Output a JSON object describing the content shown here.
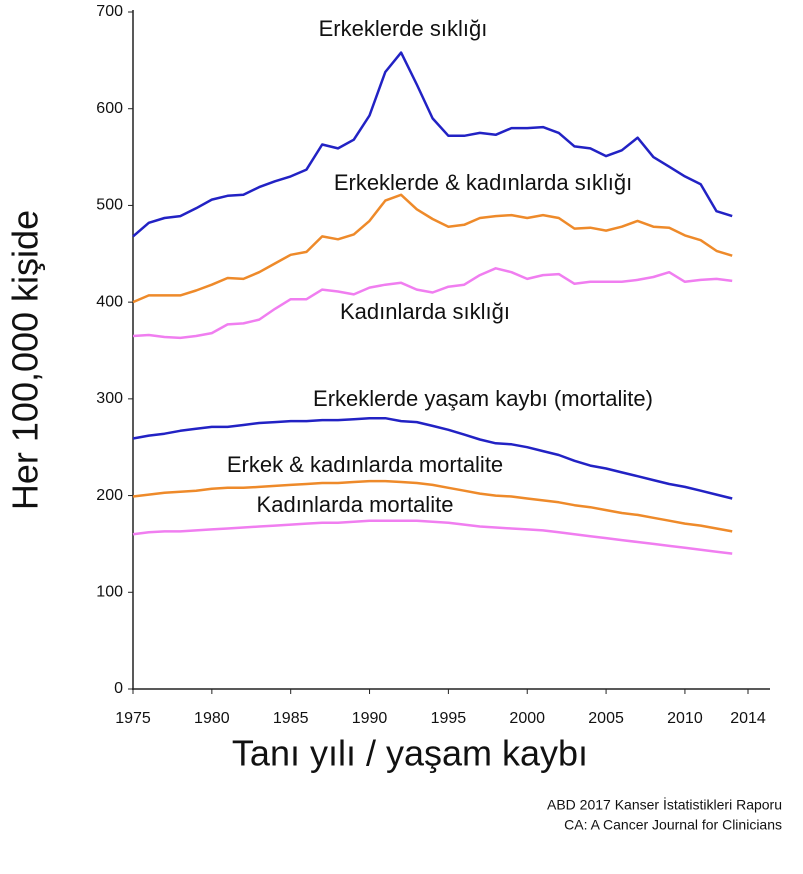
{
  "chart_data": {
    "type": "line",
    "ylabel": "Her 100,000 kişide",
    "xlabel": "Tanı yılı / yaşam kaybı",
    "source": [
      "ABD 2017 Kanser İstatistikleri Raporu",
      "CA: A Cancer Journal for Clinicians"
    ],
    "x": [
      1975,
      1976,
      1977,
      1978,
      1979,
      1980,
      1981,
      1982,
      1983,
      1984,
      1985,
      1986,
      1987,
      1988,
      1989,
      1990,
      1991,
      1992,
      1993,
      1994,
      1995,
      1996,
      1997,
      1998,
      1999,
      2000,
      2001,
      2002,
      2003,
      2004,
      2005,
      2006,
      2007,
      2008,
      2009,
      2010,
      2011,
      2012,
      2013
    ],
    "xlim": [
      1975,
      2014
    ],
    "xticks": [
      1975,
      1980,
      1985,
      1990,
      1995,
      2000,
      2005,
      2010,
      2014
    ],
    "ylim": [
      0,
      700
    ],
    "yticks": [
      0,
      100,
      200,
      300,
      400,
      500,
      600,
      700
    ],
    "series": [
      {
        "name": "Erkeklerde sıklığı",
        "color": "#2222c4",
        "values": [
          468,
          482,
          487,
          489,
          497,
          506,
          510,
          511,
          519,
          525,
          530,
          537,
          563,
          559,
          568,
          593,
          638,
          658,
          625,
          590,
          572,
          572,
          575,
          573,
          580,
          580,
          581,
          575,
          561,
          559,
          551,
          557,
          570,
          550,
          540,
          530,
          522,
          494,
          489
        ]
      },
      {
        "name": "Erkeklerde & kadınlarda sıklığı",
        "color": "#ee8a2a",
        "values": [
          400,
          407,
          407,
          407,
          412,
          418,
          425,
          424,
          431,
          440,
          449,
          452,
          468,
          465,
          470,
          484,
          505,
          511,
          496,
          486,
          478,
          480,
          487,
          489,
          490,
          487,
          490,
          487,
          476,
          477,
          474,
          478,
          484,
          478,
          477,
          469,
          464,
          453,
          448
        ]
      },
      {
        "name": "Kadınlarda sıklığı",
        "color": "#f07ef0",
        "values": [
          365,
          366,
          364,
          363,
          365,
          368,
          377,
          378,
          382,
          393,
          403,
          403,
          413,
          411,
          408,
          415,
          418,
          420,
          413,
          410,
          416,
          418,
          428,
          435,
          431,
          424,
          428,
          429,
          419,
          421,
          421,
          421,
          423,
          426,
          431,
          421,
          423,
          424,
          422
        ]
      },
      {
        "name": "Erkeklerde yaşam kaybı (mortalite)",
        "color": "#2222c4",
        "values": [
          259,
          262,
          264,
          267,
          269,
          271,
          271,
          273,
          275,
          276,
          277,
          277,
          278,
          278,
          279,
          280,
          280,
          277,
          276,
          272,
          268,
          263,
          258,
          254,
          253,
          250,
          246,
          242,
          236,
          231,
          228,
          224,
          220,
          216,
          212,
          209,
          205,
          201,
          197
        ]
      },
      {
        "name": "Erkek & kadınlarda mortalite",
        "color": "#ee8a2a",
        "values": [
          199,
          201,
          203,
          204,
          205,
          207,
          208,
          208,
          209,
          210,
          211,
          212,
          213,
          213,
          214,
          215,
          215,
          214,
          213,
          211,
          208,
          205,
          202,
          200,
          199,
          197,
          195,
          193,
          190,
          188,
          185,
          182,
          180,
          177,
          174,
          171,
          169,
          166,
          163
        ]
      },
      {
        "name": "Kadınlarda mortalite",
        "color": "#f07ef0",
        "values": [
          160,
          162,
          163,
          163,
          164,
          165,
          166,
          167,
          168,
          169,
          170,
          171,
          172,
          172,
          173,
          174,
          174,
          174,
          174,
          173,
          172,
          170,
          168,
          167,
          166,
          165,
          164,
          162,
          160,
          158,
          156,
          154,
          152,
          150,
          148,
          146,
          144,
          142,
          140
        ]
      }
    ]
  }
}
